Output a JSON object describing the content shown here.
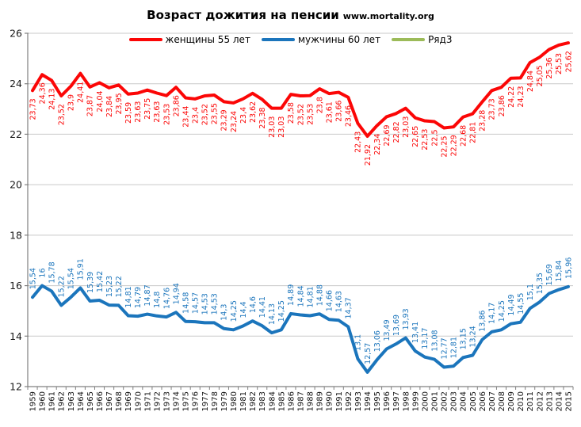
{
  "chart_data": {
    "type": "line",
    "title": "Возраст дожития на пенсии",
    "source": "www.mortality.org",
    "xlabel": "",
    "ylabel": "",
    "ylim": [
      12,
      26
    ],
    "ytick_step": 2,
    "grid": true,
    "legend_position": "top",
    "decimal_separator": ",",
    "x": [
      1959,
      1960,
      1961,
      1962,
      1963,
      1964,
      1965,
      1966,
      1967,
      1968,
      1969,
      1970,
      1971,
      1972,
      1973,
      1974,
      1975,
      1976,
      1977,
      1978,
      1979,
      1980,
      1981,
      1982,
      1983,
      1984,
      1985,
      1986,
      1987,
      1988,
      1989,
      1990,
      1991,
      1992,
      1993,
      1994,
      1995,
      1996,
      1997,
      1998,
      1999,
      2000,
      2001,
      2002,
      2003,
      2004,
      2005,
      2006,
      2007,
      2008,
      2009,
      2010,
      2011,
      2012,
      2013,
      2014,
      2015
    ],
    "series": [
      {
        "name": "женщины 55 лет",
        "color": "#FB0606",
        "label_position": "below",
        "values": [
          23.73,
          24.36,
          24.13,
          23.52,
          23.9,
          24.41,
          23.87,
          24.04,
          23.84,
          23.95,
          23.59,
          23.63,
          23.75,
          23.63,
          23.53,
          23.86,
          23.44,
          23.4,
          23.52,
          23.55,
          23.29,
          23.24,
          23.4,
          23.62,
          23.38,
          23.03,
          23.03,
          23.58,
          23.52,
          23.53,
          23.8,
          23.61,
          23.66,
          23.46,
          22.43,
          21.92,
          22.34,
          22.69,
          22.82,
          23.03,
          22.65,
          22.53,
          22.5,
          22.25,
          22.29,
          22.68,
          22.81,
          23.28,
          23.73,
          23.86,
          24.22,
          24.23,
          24.84,
          25.05,
          25.36,
          25.53,
          25.62
        ]
      },
      {
        "name": "мужчины 60 лет",
        "color": "#1B75BC",
        "label_position": "above",
        "values": [
          15.54,
          16,
          15.78,
          15.22,
          15.54,
          15.91,
          15.39,
          15.42,
          15.23,
          15.22,
          14.81,
          14.79,
          14.87,
          14.8,
          14.76,
          14.94,
          14.58,
          14.57,
          14.53,
          14.53,
          14.3,
          14.25,
          14.4,
          14.6,
          14.41,
          14.13,
          14.25,
          14.89,
          14.84,
          14.81,
          14.88,
          14.66,
          14.63,
          14.37,
          13.1,
          12.57,
          13.06,
          13.49,
          13.69,
          13.93,
          13.41,
          13.17,
          13.08,
          12.77,
          12.81,
          13.15,
          13.24,
          13.86,
          14.17,
          14.25,
          14.49,
          14.55,
          15.1,
          15.35,
          15.69,
          15.84,
          15.96
        ]
      },
      {
        "name": "Ряд3",
        "color": "#9CBB59",
        "label_position": "above",
        "values": []
      }
    ],
    "y_tick_labels": [
      "12",
      "14",
      "16",
      "18",
      "20",
      "22",
      "24",
      "26"
    ]
  },
  "style": {
    "grid_color": "#C9C9C9",
    "axis_color": "#808080",
    "tick_label_color": "#1A1A1A"
  }
}
